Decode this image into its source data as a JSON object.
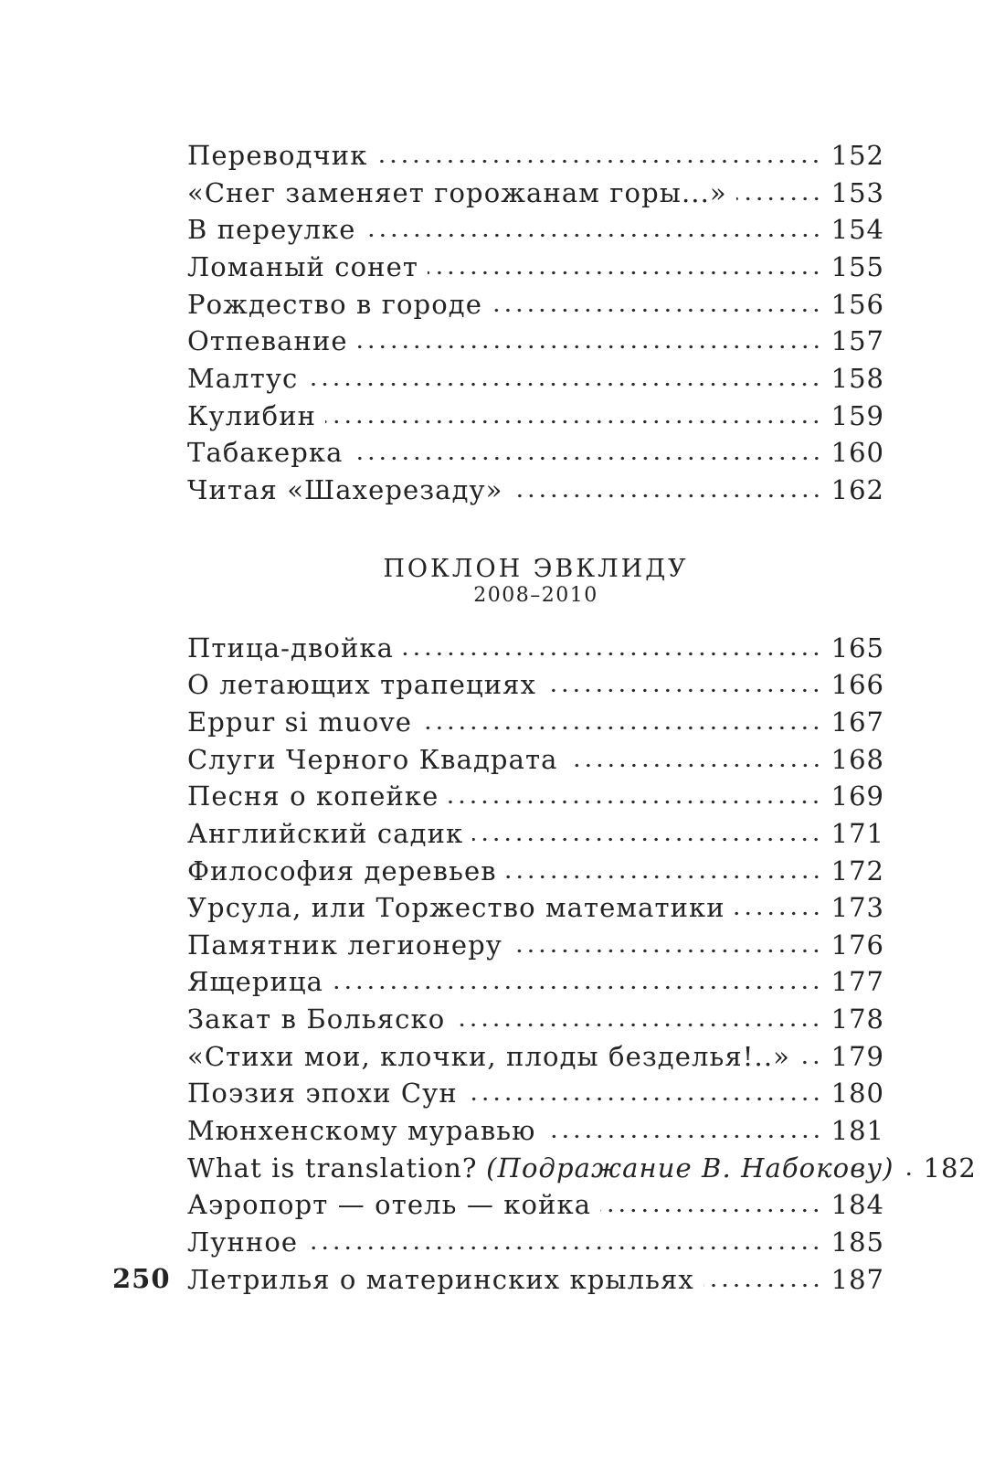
{
  "page": {
    "folio": "250"
  },
  "colors": {
    "background": "#ffffff",
    "text": "#232323"
  },
  "toc": {
    "sections": [
      {
        "entries": [
          {
            "label": "Переводчик",
            "page": "152"
          },
          {
            "label": "«Снег заменяет горожанам горы...»",
            "page": "153"
          },
          {
            "label": "В переулке",
            "page": "154"
          },
          {
            "label": "Ломаный сонет",
            "page": "155"
          },
          {
            "label": "Рождество в городе",
            "page": "156"
          },
          {
            "label": "Отпевание",
            "page": "157"
          },
          {
            "label": "Малтус",
            "page": "158"
          },
          {
            "label": "Кулибин",
            "page": "159"
          },
          {
            "label": "Табакерка",
            "page": "160"
          },
          {
            "label": "Читая «Шахерезаду»",
            "page": "162"
          }
        ]
      },
      {
        "heading": {
          "title": "ПОКЛОН ЭВКЛИДУ",
          "years": "2008–2010"
        },
        "entries": [
          {
            "label": "Птица-двойка",
            "page": "165"
          },
          {
            "label": "О летающих трапециях",
            "page": "166"
          },
          {
            "label": "Eppur si muove",
            "page": "167"
          },
          {
            "label": "Слуги Черного Квадрата",
            "page": "168"
          },
          {
            "label": "Песня о копейке",
            "page": "169"
          },
          {
            "label": "Английский садик",
            "page": "171"
          },
          {
            "label": "Философия деревьев",
            "page": "172"
          },
          {
            "label": "Урсула, или Торжество математики",
            "page": "173"
          },
          {
            "label": "Памятник легионеру",
            "page": "176"
          },
          {
            "label": "Ящерица",
            "page": "177"
          },
          {
            "label": "Закат в Больяско",
            "page": "178"
          },
          {
            "label": "«Стихи мои, клочки, плоды безделья!..»",
            "page": "179"
          },
          {
            "label": "Поэзия эпохи Сун",
            "page": "180"
          },
          {
            "label": "Мюнхенскому муравью",
            "page": "181"
          },
          {
            "label": "What is translation?",
            "label_italic": "(Подражание В. Набокову)",
            "page": "182"
          },
          {
            "label": "Аэропорт — отель — койка",
            "page": "184"
          },
          {
            "label": "Лунное",
            "page": "185"
          },
          {
            "label": "Летрилья о материнских крыльях",
            "page": "187"
          }
        ]
      }
    ]
  }
}
